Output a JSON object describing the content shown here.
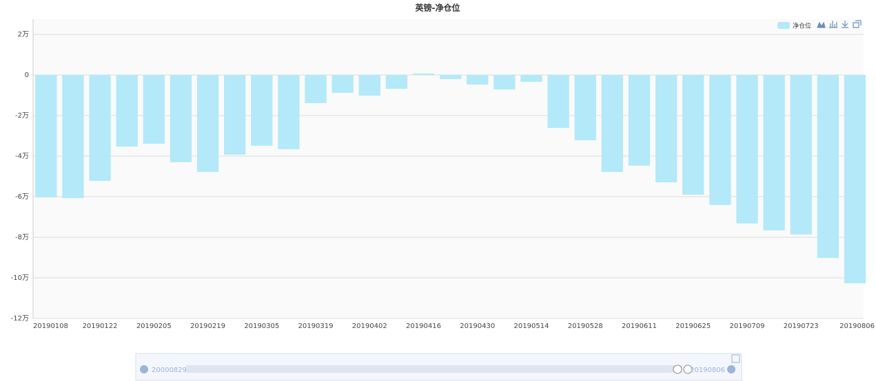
{
  "chart_data": {
    "type": "bar",
    "title": "英镑-净仓位",
    "categories": [
      "20190108",
      null,
      "20190122",
      null,
      "20190205",
      null,
      "20190219",
      null,
      "20190305",
      null,
      "20190319",
      null,
      "20190402",
      null,
      "20190416",
      null,
      "20190430",
      null,
      "20190514",
      null,
      "20190528",
      null,
      "20190611",
      null,
      "20190625",
      null,
      "20190709",
      null,
      "20190723",
      null,
      "20190806"
    ],
    "series": [
      {
        "name": "净仓位",
        "color": "#b3e9f8",
        "values": [
          -60300,
          -60700,
          -52200,
          -35300,
          -33900,
          -43000,
          -47800,
          -39300,
          -34900,
          -36600,
          -13900,
          -8800,
          -10200,
          -6800,
          700,
          -2000,
          -4700,
          -7100,
          -3400,
          -26100,
          -32200,
          -47800,
          -44700,
          -52900,
          -59000,
          -64100,
          -73200,
          -76600,
          -78600,
          -90200,
          -102700
        ]
      }
    ],
    "ylim": [
      -120000,
      20000
    ],
    "yticks": [
      {
        "value": -120000,
        "label": "-12万"
      },
      {
        "value": -100000,
        "label": "-10万"
      },
      {
        "value": -80000,
        "label": "-8万"
      },
      {
        "value": -60000,
        "label": "-6万"
      },
      {
        "value": -40000,
        "label": "-4万"
      },
      {
        "value": -20000,
        "label": "-2万"
      },
      0,
      {
        "value": 20000,
        "label": "2万"
      }
    ],
    "grid": true,
    "legend": "top-right",
    "data_zoom": {
      "start": "20000829",
      "end": "20190806"
    }
  }
}
